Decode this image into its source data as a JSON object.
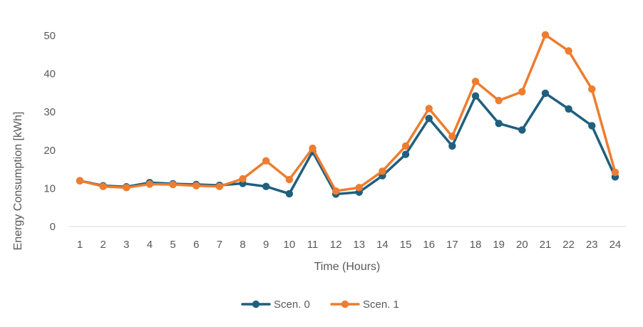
{
  "chart_data": {
    "type": "line",
    "title": "",
    "xlabel": "Time (Hours)",
    "ylabel": "Energy Consumption [kWh]",
    "x": [
      "1",
      "2",
      "3",
      "4",
      "5",
      "6",
      "7",
      "8",
      "9",
      "10",
      "11",
      "12",
      "13",
      "14",
      "15",
      "16",
      "17",
      "18",
      "19",
      "20",
      "21",
      "22",
      "23",
      "24"
    ],
    "ylim": [
      0,
      50
    ],
    "yticks": [
      "0",
      "10",
      "20",
      "30",
      "40",
      "50"
    ],
    "grid": false,
    "legend_position": "bottom",
    "series": [
      {
        "name": "Scen. 0",
        "color": "#1f5f7f",
        "values": [
          12.0,
          10.7,
          10.4,
          11.5,
          11.2,
          11.0,
          10.8,
          11.3,
          10.5,
          8.6,
          19.6,
          8.5,
          9.0,
          13.3,
          18.9,
          28.3,
          21.1,
          34.2,
          27.0,
          25.3,
          34.9,
          30.8,
          26.4,
          13.0
        ]
      },
      {
        "name": "Scen. 1",
        "color": "#ed7d31",
        "values": [
          12.0,
          10.5,
          10.2,
          11.1,
          11.0,
          10.7,
          10.5,
          12.5,
          17.2,
          12.3,
          20.5,
          9.3,
          10.2,
          14.5,
          21.1,
          30.9,
          23.6,
          38.0,
          33.0,
          35.3,
          50.2,
          46.0,
          36.0,
          14.2
        ]
      }
    ]
  }
}
